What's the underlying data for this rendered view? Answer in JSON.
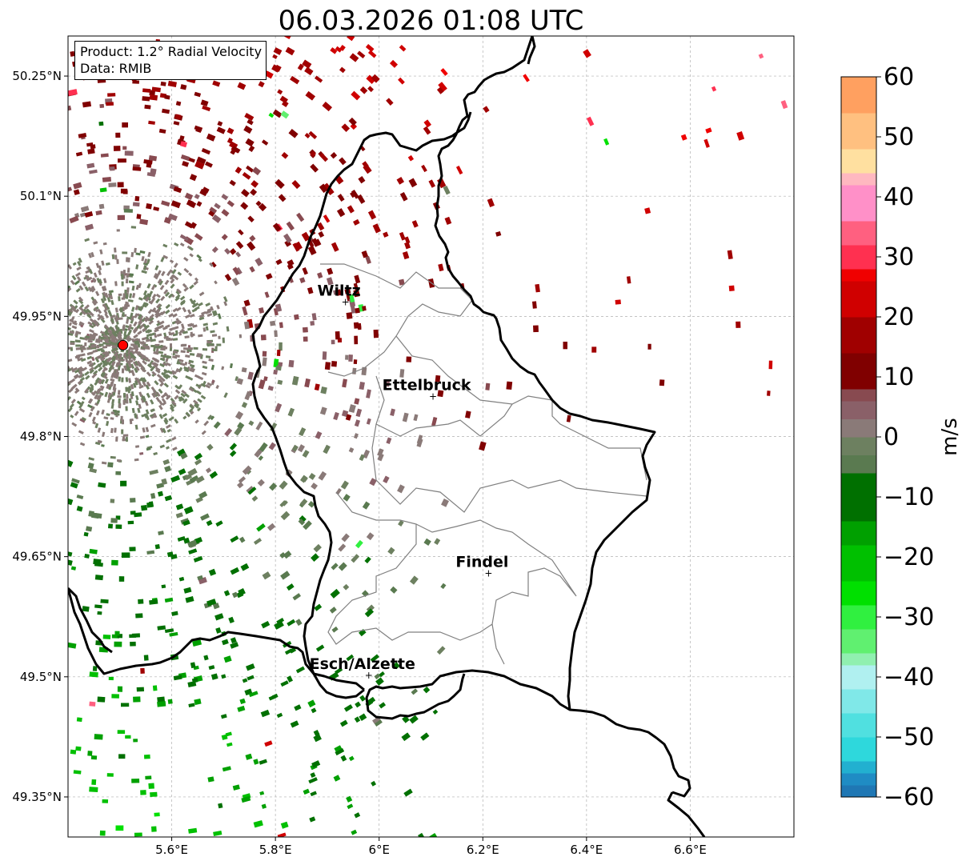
{
  "title": "06.03.2026 01:08 UTC",
  "info_box": {
    "product_line": "Product: 1.2° Radial Velocity",
    "data_line": "Data: RMIB"
  },
  "x_ticks": [
    {
      "lon": 5.6,
      "label": "5.6°E"
    },
    {
      "lon": 5.8,
      "label": "5.8°E"
    },
    {
      "lon": 6.0,
      "label": "6°E"
    },
    {
      "lon": 6.2,
      "label": "6.2°E"
    },
    {
      "lon": 6.4,
      "label": "6.4°E"
    },
    {
      "lon": 6.6,
      "label": "6.6°E"
    }
  ],
  "y_ticks": [
    {
      "lat": 50.25,
      "label": "50.25°N"
    },
    {
      "lat": 50.1,
      "label": "50.1°N"
    },
    {
      "lat": 49.95,
      "label": "49.95°N"
    },
    {
      "lat": 49.8,
      "label": "49.8°N"
    },
    {
      "lat": 49.65,
      "label": "49.65°N"
    },
    {
      "lat": 49.5,
      "label": "49.5°N"
    },
    {
      "lat": 49.35,
      "label": "49.35°N"
    }
  ],
  "extent": {
    "lon_min": 5.4,
    "lon_max": 6.8,
    "lat_min": 49.3,
    "lat_max": 50.3
  },
  "radar_site": {
    "lon": 5.506,
    "lat": 49.914,
    "color": "#ff0000"
  },
  "cities": [
    {
      "name": "Wiltz",
      "lon": 5.935,
      "lat": 49.966
    },
    {
      "name": "Ettelbruck",
      "lon": 6.104,
      "lat": 49.848
    },
    {
      "name": "Findel",
      "lon": 6.211,
      "lat": 49.627
    },
    {
      "name": "Esch/Alzette",
      "lon": 5.98,
      "lat": 49.5
    }
  ],
  "colorbar": {
    "label": "m/s",
    "min": -60,
    "max": 60,
    "ticks": [
      {
        "value": 60,
        "label": "60"
      },
      {
        "value": 50,
        "label": "50"
      },
      {
        "value": 40,
        "label": "40"
      },
      {
        "value": 30,
        "label": "30"
      },
      {
        "value": 20,
        "label": "20"
      },
      {
        "value": 10,
        "label": "10"
      },
      {
        "value": 0,
        "label": "0"
      },
      {
        "value": -10,
        "label": "−10"
      },
      {
        "value": -20,
        "label": "−20"
      },
      {
        "value": -30,
        "label": "−30"
      },
      {
        "value": -40,
        "label": "−40"
      },
      {
        "value": -50,
        "label": "−50"
      },
      {
        "value": -60,
        "label": "−60"
      }
    ],
    "stops": [
      {
        "from": -60,
        "to": -58,
        "color": "#1f77b4"
      },
      {
        "from": -58,
        "to": -56,
        "color": "#1f8cc4"
      },
      {
        "from": -56,
        "to": -54,
        "color": "#22b0d0"
      },
      {
        "from": -54,
        "to": -50,
        "color": "#2ed8dc"
      },
      {
        "from": -50,
        "to": -46,
        "color": "#50e0e0"
      },
      {
        "from": -46,
        "to": -42,
        "color": "#80e8e8"
      },
      {
        "from": -42,
        "to": -38,
        "color": "#b0f0f0"
      },
      {
        "from": -38,
        "to": -36,
        "color": "#90f0b0"
      },
      {
        "from": -36,
        "to": -32,
        "color": "#60f070"
      },
      {
        "from": -32,
        "to": -28,
        "color": "#30f040"
      },
      {
        "from": -28,
        "to": -24,
        "color": "#00e000"
      },
      {
        "from": -24,
        "to": -18,
        "color": "#00c000"
      },
      {
        "from": -18,
        "to": -14,
        "color": "#00a000"
      },
      {
        "from": -14,
        "to": -6,
        "color": "#007000"
      },
      {
        "from": -6,
        "to": -3,
        "color": "#5a7a50"
      },
      {
        "from": -3,
        "to": 0,
        "color": "#6d8060"
      },
      {
        "from": 0,
        "to": 3,
        "color": "#8a7a78"
      },
      {
        "from": 3,
        "to": 6,
        "color": "#8a6068"
      },
      {
        "from": 6,
        "to": 8,
        "color": "#884a50"
      },
      {
        "from": 8,
        "to": 14,
        "color": "#800000"
      },
      {
        "from": 14,
        "to": 20,
        "color": "#a00000"
      },
      {
        "from": 20,
        "to": 26,
        "color": "#d00000"
      },
      {
        "from": 26,
        "to": 28,
        "color": "#f00000"
      },
      {
        "from": 28,
        "to": 32,
        "color": "#ff3050"
      },
      {
        "from": 32,
        "to": 36,
        "color": "#ff6080"
      },
      {
        "from": 36,
        "to": 42,
        "color": "#ff90c8"
      },
      {
        "from": 42,
        "to": 44,
        "color": "#ffb8c0"
      },
      {
        "from": 44,
        "to": 48,
        "color": "#ffe0a0"
      },
      {
        "from": 48,
        "to": 54,
        "color": "#ffc080"
      },
      {
        "from": 54,
        "to": 60,
        "color": "#ffa060"
      }
    ]
  },
  "colors": {
    "border": "#000000",
    "canton_lines": "#808080",
    "grid": "#b0b0b0",
    "far_recede_green": "#007000",
    "near_gray": "#8a7a78",
    "approach_red": "#800000"
  }
}
